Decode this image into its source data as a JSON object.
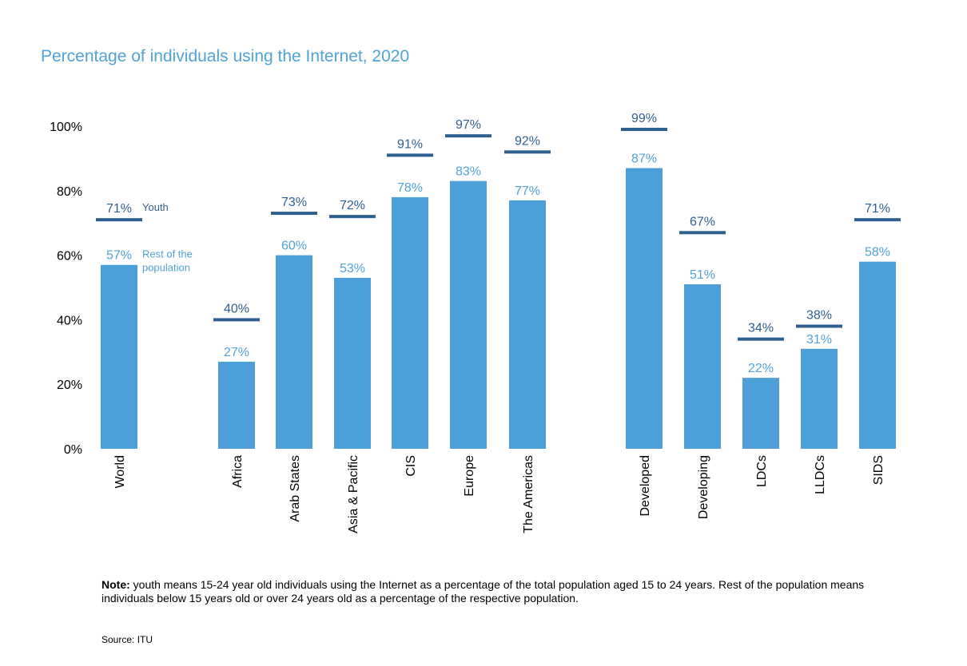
{
  "chart_data": {
    "type": "bar",
    "title": "Percentage of individuals using the Internet, 2020",
    "xlabel": "",
    "ylabel": "",
    "ylim": [
      0,
      100
    ],
    "yticks": [
      "0%",
      "20%",
      "40%",
      "60%",
      "80%",
      "100%"
    ],
    "grid": false,
    "legend": {
      "youth_label": "Youth",
      "rest_label_line1": "Rest of the",
      "rest_label_line2": "population"
    },
    "categories": [
      "World",
      "Africa",
      "Arab States",
      "Asia & Pacific",
      "CIS",
      "Europe",
      "The Americas",
      "Developed",
      "Developing",
      "LDCs",
      "LLDCs",
      "SIDS"
    ],
    "series": [
      {
        "name": "Rest of the population",
        "values": [
          57,
          27,
          60,
          53,
          78,
          83,
          77,
          87,
          51,
          22,
          31,
          58
        ],
        "color": "#4d9fda"
      },
      {
        "name": "Youth",
        "values": [
          71,
          40,
          73,
          72,
          91,
          97,
          92,
          99,
          67,
          34,
          38,
          71
        ],
        "color": "#2f5f8f"
      }
    ],
    "value_labels_rest": [
      "57%",
      "27%",
      "60%",
      "53%",
      "78%",
      "83%",
      "77%",
      "87%",
      "51%",
      "22%",
      "31%",
      "58%"
    ],
    "value_labels_youth": [
      "71%",
      "40%",
      "73%",
      "72%",
      "91%",
      "97%",
      "92%",
      "99%",
      "67%",
      "34%",
      "38%",
      "71%"
    ]
  },
  "note": {
    "label": "Note:",
    "text": " youth means 15-24 year old individuals using the Internet as a percentage of the total population aged 15 to 24 years. Rest of the population means individuals below 15 years old or over 24 years old as a percentage of the respective population."
  },
  "source": "Source: ITU",
  "colors": {
    "title": "#4fa3d9",
    "rest_label": "#4fa3d9",
    "youth_label": "#2f5f8f"
  }
}
